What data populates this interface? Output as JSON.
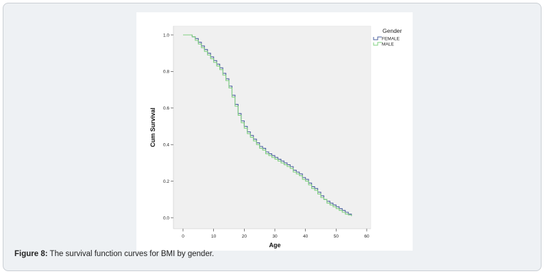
{
  "caption": {
    "label": "Figure 8:",
    "text": " The survival function curves for BMI by gender."
  },
  "chart_data": {
    "type": "line",
    "title": "",
    "xlabel": "Age",
    "ylabel": "Cum Survival",
    "xlim": [
      0,
      60
    ],
    "ylim": [
      0,
      1.0
    ],
    "x_ticks": [
      "0",
      "10",
      "20",
      "30",
      "40",
      "50",
      "60"
    ],
    "y_ticks": [
      "0.0",
      "0.2",
      "0.4",
      "0.6",
      "0.8",
      "1.0"
    ],
    "grid": false,
    "step": true,
    "legend": {
      "title": "Gender",
      "position": "top-right"
    },
    "series": [
      {
        "name": "FEMALE",
        "color": "#4a5f9e",
        "x": [
          0,
          2,
          3,
          4,
          5,
          6,
          7,
          8,
          9,
          10,
          11,
          12,
          13,
          14,
          15,
          16,
          17,
          18,
          19,
          20,
          21,
          22,
          23,
          24,
          25,
          26,
          27,
          28,
          29,
          30,
          31,
          32,
          33,
          34,
          35,
          36,
          37,
          38,
          39,
          40,
          41,
          42,
          43,
          44,
          45,
          46,
          47,
          48,
          49,
          50,
          51,
          52,
          53,
          54,
          55
        ],
        "values": [
          1.0,
          1.0,
          0.99,
          0.98,
          0.96,
          0.94,
          0.92,
          0.9,
          0.88,
          0.86,
          0.84,
          0.82,
          0.79,
          0.76,
          0.72,
          0.67,
          0.62,
          0.57,
          0.53,
          0.5,
          0.47,
          0.45,
          0.43,
          0.41,
          0.39,
          0.38,
          0.36,
          0.35,
          0.34,
          0.33,
          0.32,
          0.31,
          0.3,
          0.29,
          0.28,
          0.26,
          0.25,
          0.24,
          0.22,
          0.21,
          0.19,
          0.17,
          0.16,
          0.14,
          0.12,
          0.1,
          0.09,
          0.08,
          0.07,
          0.06,
          0.05,
          0.04,
          0.03,
          0.02,
          0.01
        ]
      },
      {
        "name": "MALE",
        "color": "#7fd07f",
        "x": [
          0,
          2,
          3,
          4,
          5,
          6,
          7,
          8,
          9,
          10,
          11,
          12,
          13,
          14,
          15,
          16,
          17,
          18,
          19,
          20,
          21,
          22,
          23,
          24,
          25,
          26,
          27,
          28,
          29,
          30,
          31,
          32,
          33,
          34,
          35,
          36,
          37,
          38,
          39,
          40,
          41,
          42,
          43,
          44,
          45,
          46,
          47,
          48,
          49,
          50,
          51,
          52,
          53,
          54,
          55
        ],
        "values": [
          1.0,
          1.0,
          0.99,
          0.97,
          0.95,
          0.93,
          0.91,
          0.89,
          0.87,
          0.85,
          0.83,
          0.81,
          0.78,
          0.75,
          0.71,
          0.66,
          0.61,
          0.56,
          0.52,
          0.49,
          0.46,
          0.44,
          0.42,
          0.4,
          0.38,
          0.37,
          0.35,
          0.34,
          0.33,
          0.32,
          0.31,
          0.3,
          0.29,
          0.28,
          0.27,
          0.25,
          0.24,
          0.23,
          0.21,
          0.2,
          0.18,
          0.16,
          0.15,
          0.13,
          0.11,
          0.1,
          0.08,
          0.07,
          0.06,
          0.05,
          0.04,
          0.03,
          0.02,
          0.015,
          0.01
        ]
      }
    ]
  }
}
